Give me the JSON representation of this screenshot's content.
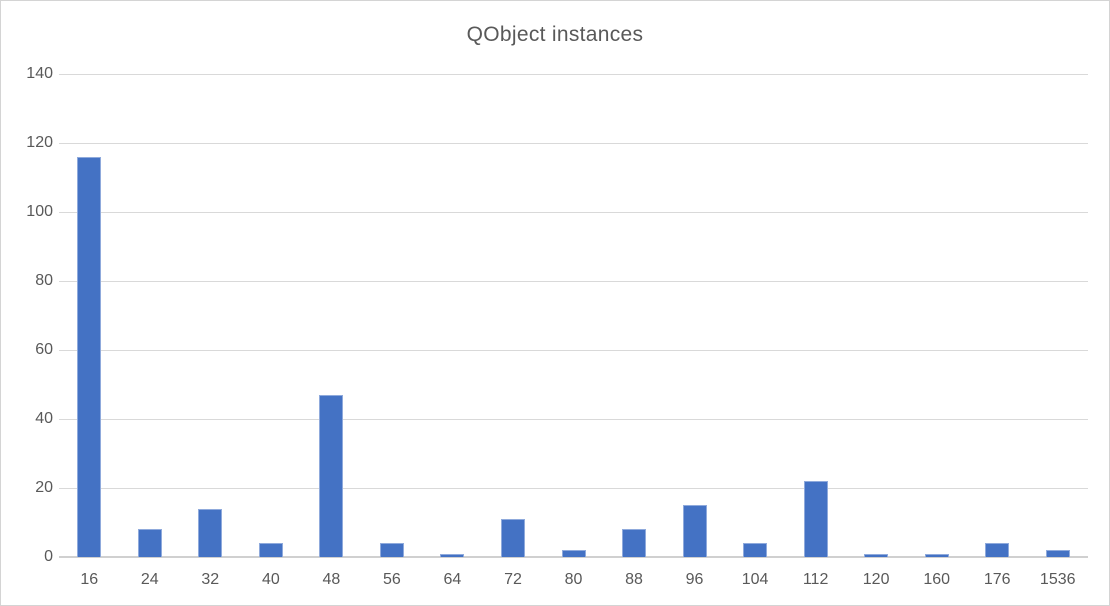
{
  "chart_data": {
    "type": "bar",
    "title": "QObject instances",
    "categories": [
      "16",
      "24",
      "32",
      "40",
      "48",
      "56",
      "64",
      "72",
      "80",
      "88",
      "96",
      "104",
      "112",
      "120",
      "160",
      "176",
      "1536"
    ],
    "values": [
      116,
      8,
      14,
      4,
      47,
      4,
      1,
      11,
      2,
      8,
      15,
      4,
      22,
      1,
      1,
      4,
      2
    ],
    "xlabel": "",
    "ylabel": "",
    "ylim": [
      0,
      140
    ],
    "yticks": [
      0,
      20,
      40,
      60,
      80,
      100,
      120,
      140
    ],
    "grid": true,
    "legend_position": "none",
    "colors": {
      "bar_fill": "#4472c4",
      "bar_border": "#8faadc",
      "gridline": "#d9d9d9",
      "axis_line": "#d0d0d0",
      "text": "#595959",
      "background": "#ffffff",
      "frame_border": "#d4d4d4"
    }
  }
}
